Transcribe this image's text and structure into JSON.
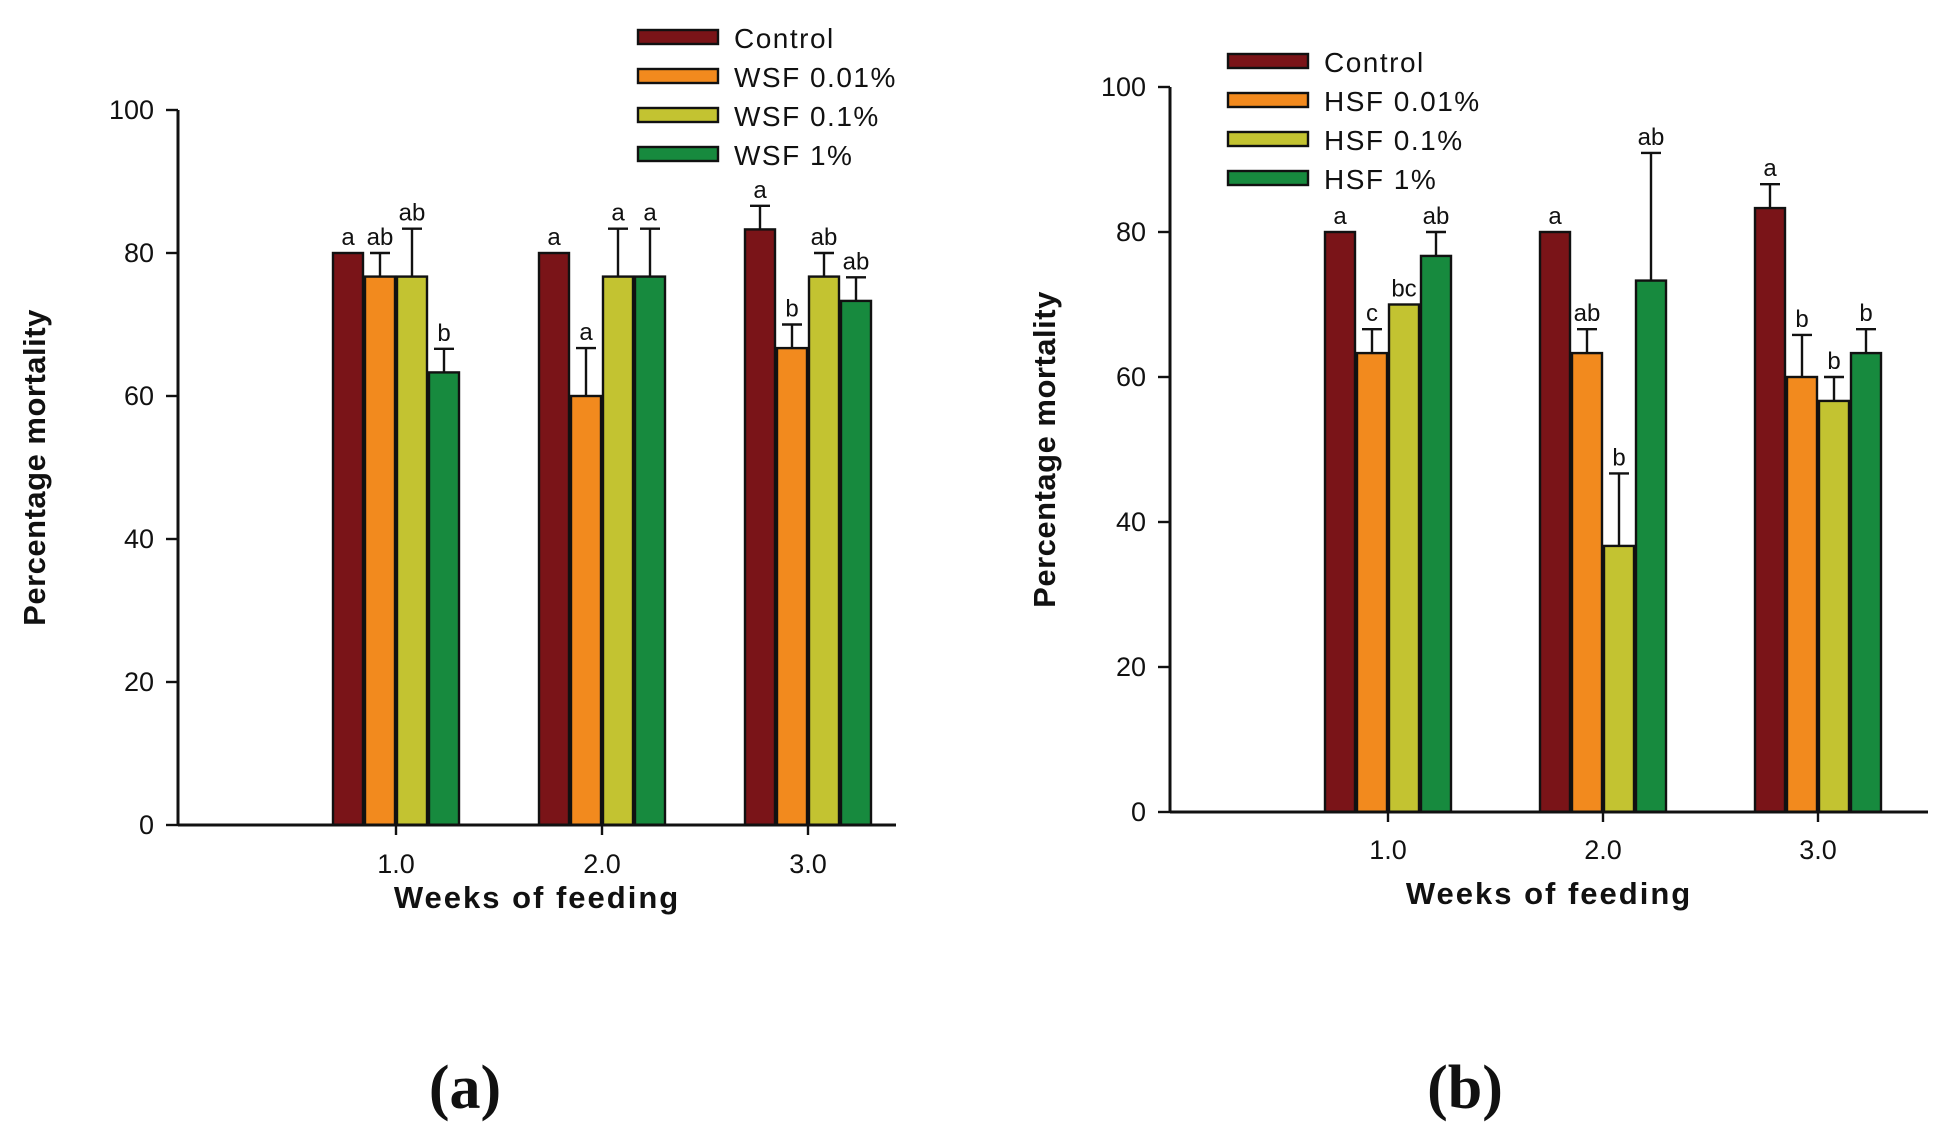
{
  "chart_data": [
    {
      "type": "bar",
      "panel_label": "(a)",
      "categories": [
        "1.0",
        "2.0",
        "3.0"
      ],
      "series": [
        {
          "name": "Control",
          "color": "#7a1418",
          "values": [
            80.0,
            80.0,
            83.3
          ],
          "errors": [
            0,
            0,
            3.3
          ],
          "labels": [
            "a",
            "a",
            "a"
          ]
        },
        {
          "name": "WSF 0.01%",
          "color": "#f28a1e",
          "values": [
            76.7,
            60.0,
            66.7
          ],
          "errors": [
            3.3,
            6.7,
            3.3
          ],
          "labels": [
            "ab",
            "a",
            "b"
          ]
        },
        {
          "name": "WSF 0.1%",
          "color": "#c3c331",
          "values": [
            76.7,
            76.7,
            76.7
          ],
          "errors": [
            6.7,
            6.7,
            3.3
          ],
          "labels": [
            "ab",
            "a",
            "ab"
          ]
        },
        {
          "name": "WSF 1%",
          "color": "#178a3e",
          "values": [
            63.3,
            76.7,
            73.3
          ],
          "errors": [
            3.3,
            6.7,
            3.3
          ],
          "labels": [
            "b",
            "a",
            "ab"
          ]
        }
      ],
      "xlabel": "Weeks of feeding",
      "ylabel": "Percentage mortality",
      "ylim": [
        0,
        100
      ],
      "yticks": [
        "0",
        "20",
        "40",
        "60",
        "80",
        "100"
      ],
      "grid": false,
      "legend": "top-right"
    },
    {
      "type": "bar",
      "panel_label": "(b)",
      "categories": [
        "1.0",
        "2.0",
        "3.0"
      ],
      "series": [
        {
          "name": "Control",
          "color": "#7a1418",
          "values": [
            80.0,
            80.0,
            83.3
          ],
          "errors": [
            0,
            0,
            3.3
          ],
          "labels": [
            "a",
            "a",
            "a"
          ]
        },
        {
          "name": "HSF 0.01%",
          "color": "#f28a1e",
          "values": [
            63.3,
            63.3,
            60.0
          ],
          "errors": [
            3.3,
            3.3,
            5.8
          ],
          "labels": [
            "c",
            "ab",
            "b"
          ]
        },
        {
          "name": "HSF 0.1%",
          "color": "#c3c331",
          "values": [
            70.0,
            36.7,
            56.7
          ],
          "errors": [
            0,
            10.0,
            3.3
          ],
          "labels": [
            "bc",
            "b",
            "b"
          ]
        },
        {
          "name": "HSF 1%",
          "color": "#178a3e",
          "values": [
            76.7,
            73.3,
            63.3
          ],
          "errors": [
            3.3,
            17.6,
            3.3
          ],
          "labels": [
            "ab",
            "ab",
            "b"
          ]
        }
      ],
      "xlabel": "Weeks of feeding",
      "ylabel": "Percentage mortality",
      "ylim": [
        0,
        100
      ],
      "yticks": [
        "0",
        "20",
        "40",
        "60",
        "80",
        "100"
      ],
      "grid": false,
      "legend": "top-left"
    }
  ]
}
